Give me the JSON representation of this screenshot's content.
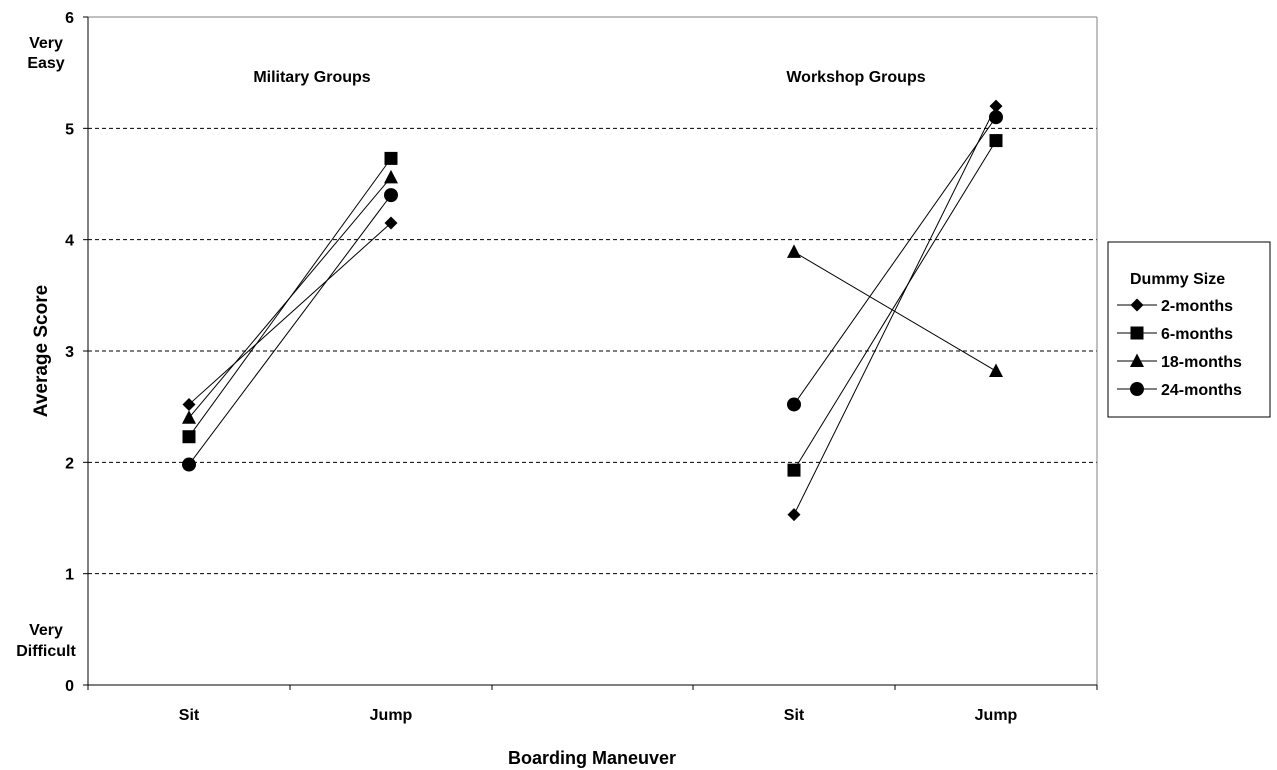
{
  "chart_data": {
    "type": "line",
    "ylabel": "Average Score",
    "xlabel": "Boarding Maneuver",
    "ylim": [
      0,
      6
    ],
    "yticks": [
      "0",
      "1",
      "2",
      "3",
      "4",
      "5",
      "6"
    ],
    "y_annotations": {
      "top": [
        "Very",
        "Easy"
      ],
      "bottom": [
        "Very",
        "Difficult"
      ]
    },
    "grid": "horizontal dashed",
    "legend": {
      "title": "Dummy Size",
      "placement": "right"
    },
    "groups": [
      {
        "title": "Military Groups",
        "categories": [
          "Sit",
          "Jump"
        ],
        "series": [
          {
            "name": "2-months",
            "marker": "diamond",
            "values": [
              2.52,
              4.15
            ]
          },
          {
            "name": "6-months",
            "marker": "square",
            "values": [
              2.23,
              4.73
            ]
          },
          {
            "name": "18-months",
            "marker": "triangle",
            "values": [
              2.4,
              4.56
            ]
          },
          {
            "name": "24-months",
            "marker": "circle",
            "values": [
              1.98,
              4.4
            ]
          }
        ]
      },
      {
        "title": "Workshop Groups",
        "categories": [
          "Sit",
          "Jump"
        ],
        "series": [
          {
            "name": "2-months",
            "marker": "diamond",
            "values": [
              1.53,
              5.2
            ]
          },
          {
            "name": "6-months",
            "marker": "square",
            "values": [
              1.93,
              4.89
            ]
          },
          {
            "name": "18-months",
            "marker": "triangle",
            "values": [
              3.89,
              2.82
            ]
          },
          {
            "name": "24-months",
            "marker": "circle",
            "values": [
              2.52,
              5.1
            ]
          }
        ]
      }
    ]
  }
}
